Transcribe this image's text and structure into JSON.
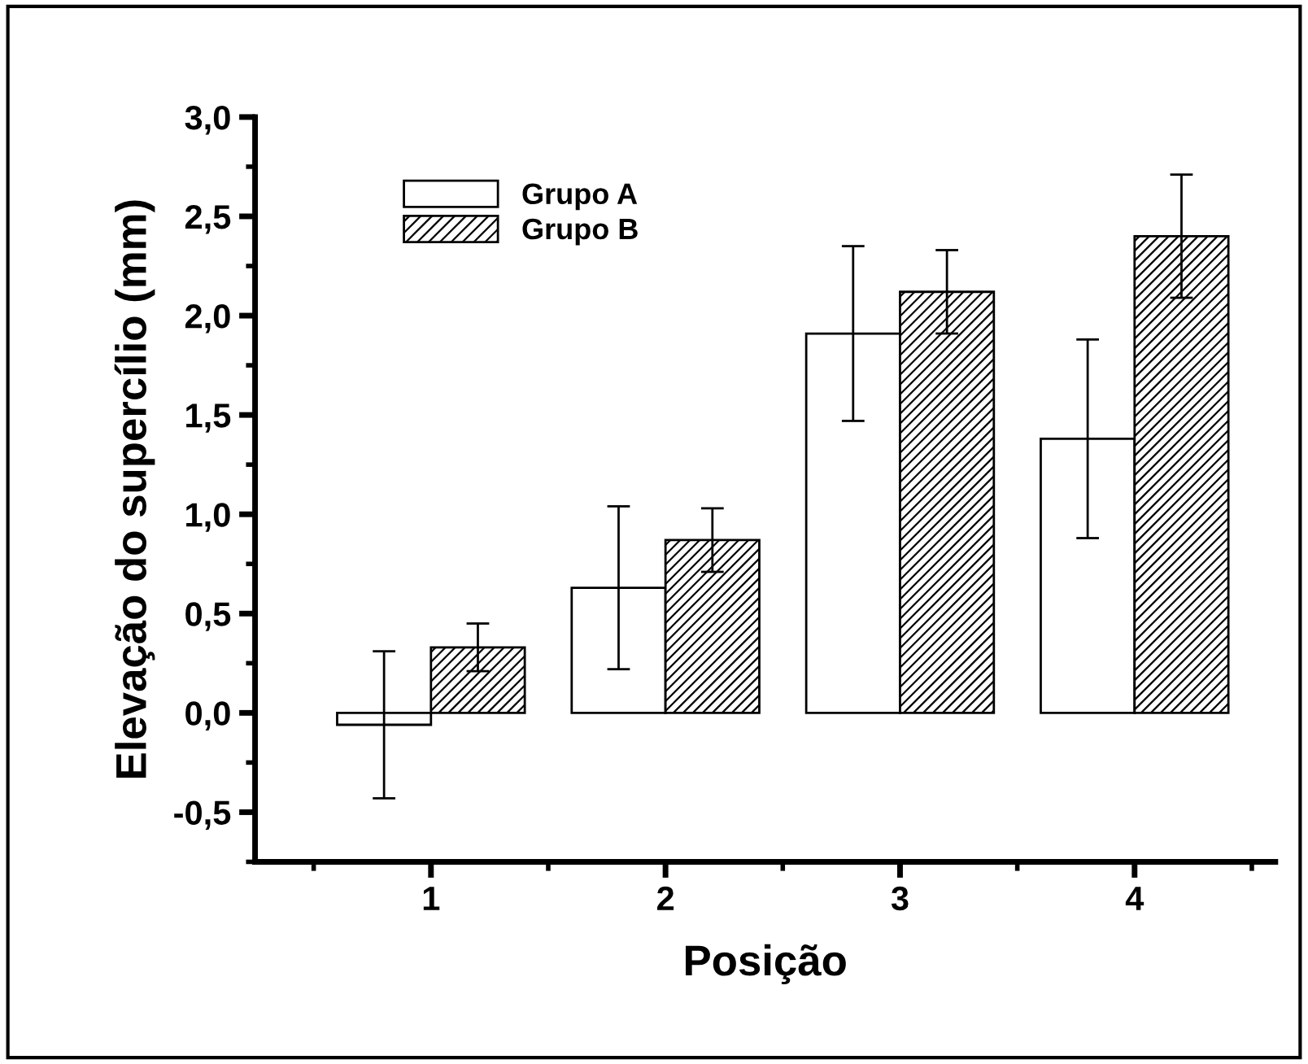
{
  "chart_data": {
    "type": "bar",
    "xlabel": "Posição",
    "ylabel": "Elevação do supercílio (mm)",
    "categories": [
      "1",
      "2",
      "3",
      "4"
    ],
    "series": [
      {
        "name": "Grupo A",
        "color": "#ffffff",
        "values": [
          -0.06,
          0.63,
          1.91,
          1.38
        ],
        "errors": [
          0.37,
          0.41,
          0.44,
          0.5
        ]
      },
      {
        "name": "Grupo B",
        "color": "#ffffff",
        "values": [
          0.33,
          0.87,
          2.12,
          2.4
        ],
        "errors": [
          0.12,
          0.16,
          0.21,
          0.31
        ]
      }
    ],
    "ylim": [
      -0.75,
      3.0
    ],
    "yticks": [
      {
        "value": -0.5,
        "label": "-0,5"
      },
      {
        "value": 0,
        "label": "0,0"
      },
      {
        "value": 0.5,
        "label": "0,5"
      },
      {
        "value": 1,
        "label": "1,0"
      },
      {
        "value": 1.5,
        "label": "1,5"
      },
      {
        "value": 2,
        "label": "2,0"
      },
      {
        "value": 2.5,
        "label": "2,5"
      },
      {
        "value": 3,
        "label": "3,0"
      }
    ],
    "grid": false,
    "legend": "top left"
  }
}
